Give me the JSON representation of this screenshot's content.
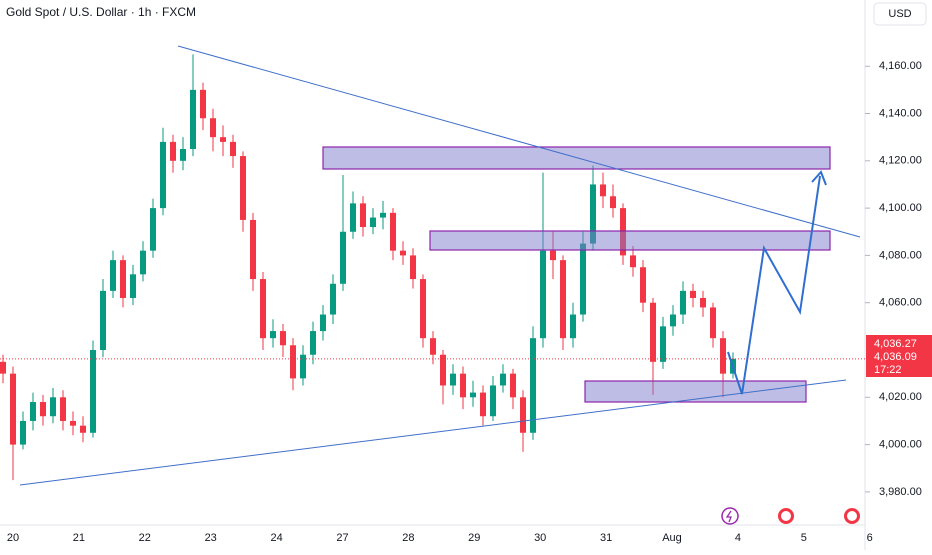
{
  "chart_data": {
    "type": "candlestick",
    "title": "Gold Spot / U.S. Dollar · 1h · FXCM",
    "currency": "USD",
    "colors": {
      "up": "#089981",
      "down": "#f23645"
    },
    "open": [
      4035,
      4030,
      4000,
      4010,
      4018,
      4012,
      4020,
      4010,
      4008,
      4005,
      4040,
      4065,
      4078,
      4062,
      4072,
      4082,
      4100,
      4128,
      4120,
      4125,
      4150,
      4138,
      4130,
      4128,
      4122,
      4095,
      4070,
      4045,
      4048,
      4042,
      4028,
      4038,
      4048,
      4055,
      4068,
      4090,
      4102,
      4092,
      4096,
      4098,
      4082,
      4080,
      4070,
      4045,
      4038,
      4025,
      4030,
      4020,
      4022,
      4012,
      4025,
      4030,
      4020,
      4005,
      4045,
      4082,
      4078,
      4045,
      4055,
      4085,
      4110,
      4105,
      4100,
      4080,
      4075,
      4060,
      4035,
      4050,
      4055,
      4065,
      4062,
      4058,
      4045,
      4030
    ],
    "high": [
      4038,
      4033,
      4014,
      4022,
      4021,
      4024,
      4023,
      4014,
      4012,
      4044,
      4070,
      4082,
      4080,
      4076,
      4086,
      4104,
      4134,
      4131,
      4130,
      4165,
      4153,
      4142,
      4135,
      4131,
      4124,
      4098,
      4073,
      4053,
      4051,
      4045,
      4042,
      4052,
      4059,
      4072,
      4114,
      4107,
      4105,
      4100,
      4103,
      4100,
      4086,
      4083,
      4072,
      4048,
      4040,
      4034,
      4033,
      4027,
      4025,
      4029,
      4034,
      4032,
      4023,
      4050,
      4115,
      4090,
      4080,
      4060,
      4090,
      4118,
      4115,
      4110,
      4102,
      4084,
      4078,
      4062,
      4054,
      4059,
      4069,
      4068,
      4065,
      4060,
      4048,
      4039
    ],
    "low": [
      4026,
      3985,
      3998,
      4006,
      4008,
      4009,
      4006,
      4004,
      4001,
      4003,
      4037,
      4062,
      4058,
      4059,
      4069,
      4079,
      4097,
      4115,
      4116,
      4122,
      4133,
      4124,
      4122,
      4117,
      4090,
      4065,
      4040,
      4041,
      4037,
      4023,
      4025,
      4034,
      4044,
      4051,
      4065,
      4087,
      4088,
      4089,
      4091,
      4078,
      4076,
      4066,
      4041,
      4034,
      4017,
      4021,
      4015,
      4016,
      4008,
      4010,
      4022,
      4015,
      3997,
      4002,
      4041,
      4070,
      4040,
      4041,
      4052,
      4082,
      4100,
      4096,
      4076,
      4071,
      4056,
      4021,
      4032,
      4046,
      4051,
      4058,
      4054,
      4041,
      4020,
      4028
    ],
    "close": [
      4030,
      4000,
      4010,
      4018,
      4012,
      4020,
      4010,
      4008,
      4005,
      4040,
      4065,
      4078,
      4062,
      4072,
      4082,
      4100,
      4128,
      4120,
      4125,
      4150,
      4138,
      4130,
      4128,
      4122,
      4095,
      4070,
      4045,
      4048,
      4042,
      4028,
      4038,
      4048,
      4055,
      4068,
      4090,
      4102,
      4092,
      4096,
      4098,
      4082,
      4080,
      4070,
      4045,
      4038,
      4025,
      4030,
      4020,
      4022,
      4012,
      4025,
      4030,
      4020,
      4005,
      4045,
      4082,
      4078,
      4045,
      4055,
      4085,
      4110,
      4105,
      4100,
      4080,
      4075,
      4060,
      4035,
      4050,
      4055,
      4065,
      4062,
      4058,
      4045,
      4030,
      4036.27
    ],
    "ylim": [
      3966,
      4188
    ],
    "yticks": [
      {
        "value": 3980,
        "label": "3,980.00"
      },
      {
        "value": 4000,
        "label": "4,000.00"
      },
      {
        "value": 4020,
        "label": "4,020.00"
      },
      {
        "value": 4060,
        "label": "4,060.00"
      },
      {
        "value": 4080,
        "label": "4,080.00"
      },
      {
        "value": 4100,
        "label": "4,100.00"
      },
      {
        "value": 4120,
        "label": "4,120.00"
      },
      {
        "value": 4140,
        "label": "4,140.00"
      },
      {
        "value": 4160,
        "label": "4,160.00"
      }
    ],
    "x_labels": [
      "20",
      "21",
      "22",
      "23",
      "24",
      "27",
      "28",
      "29",
      "30",
      "31",
      "Aug",
      "4",
      "5",
      "6"
    ],
    "last_price": "4,036.27",
    "bid_price": "4,036.09",
    "countdown": "17:22"
  }
}
